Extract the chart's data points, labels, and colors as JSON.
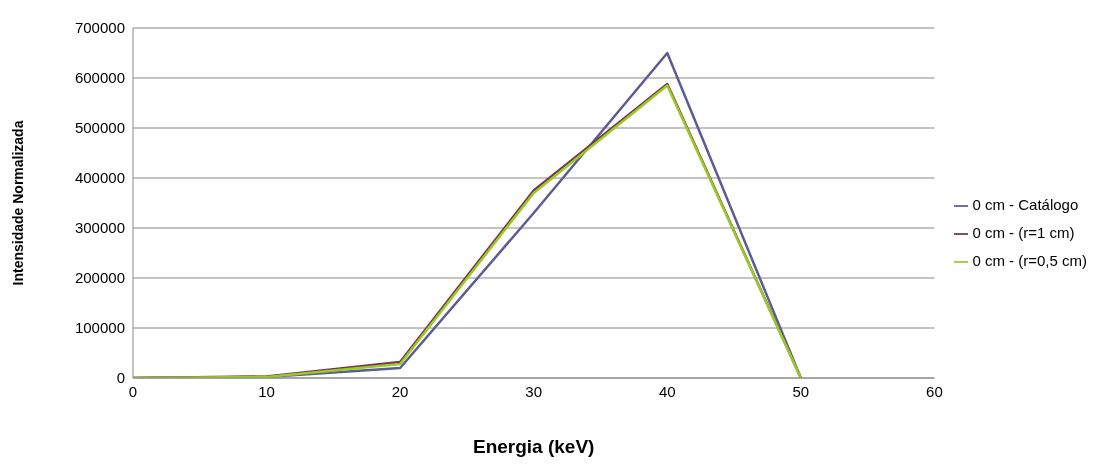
{
  "chart_data": {
    "type": "line",
    "xlabel": "Energia (keV)",
    "ylabel": "Intensidade Normalizada",
    "x": [
      0,
      10,
      20,
      30,
      40,
      50
    ],
    "series": [
      {
        "name": "0 cm - Catálogo",
        "color": "#5c5c94",
        "values": [
          0,
          2000,
          20000,
          330000,
          650000,
          0
        ]
      },
      {
        "name": "0 cm - (r=1 cm)",
        "color": "#7a3050",
        "values": [
          0,
          3000,
          32000,
          375000,
          588000,
          0
        ]
      },
      {
        "name": "0 cm - (r=0,5 cm)",
        "color": "#99cc22",
        "values": [
          0,
          2000,
          28000,
          370000,
          585000,
          0
        ]
      }
    ],
    "xlim": [
      0,
      60
    ],
    "xticks": [
      0,
      10,
      20,
      30,
      40,
      50,
      60
    ],
    "ylim": [
      0,
      700000
    ],
    "yticks": [
      0,
      100000,
      200000,
      300000,
      400000,
      500000,
      600000,
      700000
    ],
    "grid": "y",
    "legend": "right",
    "marker": "none",
    "line_style": "solid"
  }
}
